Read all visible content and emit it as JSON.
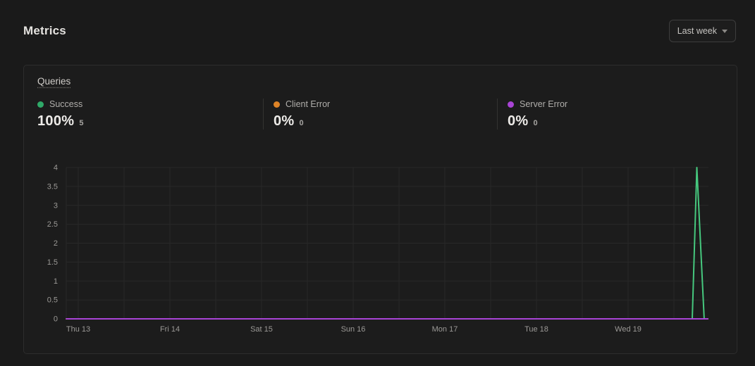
{
  "page": {
    "title": "Metrics"
  },
  "toolbar": {
    "range_selector": {
      "label": "Last week"
    }
  },
  "card": {
    "title": "Queries",
    "stats": [
      {
        "name": "Success",
        "dot_color": "#2fa968",
        "value": "100%",
        "count": "5"
      },
      {
        "name": "Client Error",
        "dot_color": "#de8327",
        "value": "0%",
        "count": "0"
      },
      {
        "name": "Server Error",
        "dot_color": "#a944d6",
        "value": "0%",
        "count": "0"
      }
    ]
  },
  "chart_data": {
    "type": "line",
    "title": "Queries",
    "xlabel": "",
    "ylabel": "",
    "x_tick_labels": [
      "Thu 13",
      "Fri 14",
      "Sat 15",
      "Sun 16",
      "Mon 17",
      "Tue 18",
      "Wed 19"
    ],
    "y_tick_labels": [
      "0",
      "0.5",
      "1",
      "1.5",
      "2",
      "2.5",
      "3",
      "3.5",
      "4"
    ],
    "ylim": [
      0,
      4
    ],
    "x_domain_days": [
      -0.13,
      6.87
    ],
    "grid": true,
    "grid_v_step_days": 0.5,
    "grid_color": "#282828",
    "tick_color": "#9b9996",
    "legend_position": "top",
    "series": [
      {
        "name": "Success",
        "color": "#46c87e",
        "points": [
          [
            -0.13,
            0
          ],
          [
            6.7,
            0
          ],
          [
            6.75,
            4
          ],
          [
            6.83,
            0
          ],
          [
            6.87,
            0
          ]
        ]
      },
      {
        "name": "Client Error",
        "color": "#de8327",
        "points": [
          [
            -0.13,
            0
          ],
          [
            6.87,
            0
          ]
        ]
      },
      {
        "name": "Server Error",
        "color": "#a944d6",
        "points": [
          [
            -0.13,
            0
          ],
          [
            6.87,
            0
          ]
        ]
      }
    ]
  }
}
